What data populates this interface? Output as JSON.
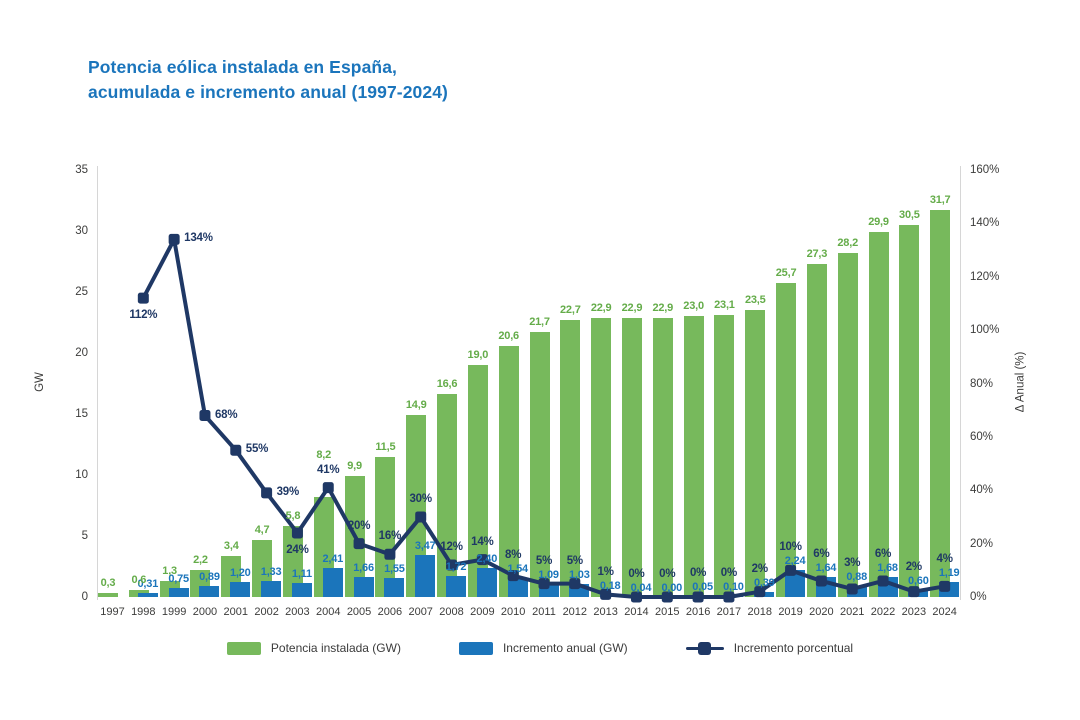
{
  "chart_data": {
    "type": "combo-bar-line",
    "title_lines": [
      "Potencia eólica instalada en España,",
      "acumulada e incremento anual (1997-2024)"
    ],
    "years": [
      1997,
      1998,
      1999,
      2000,
      2001,
      2002,
      2003,
      2004,
      2005,
      2006,
      2007,
      2008,
      2009,
      2010,
      2011,
      2012,
      2013,
      2014,
      2015,
      2016,
      2017,
      2018,
      2019,
      2020,
      2021,
      2022,
      2023,
      2024
    ],
    "series": [
      {
        "name": "Potencia instalada (GW)",
        "type": "bar",
        "color": "#77b95c",
        "values": [
          0.3,
          0.6,
          1.3,
          2.2,
          3.4,
          4.7,
          5.8,
          8.2,
          9.9,
          11.5,
          14.9,
          16.6,
          19.0,
          20.6,
          21.7,
          22.7,
          22.9,
          22.9,
          22.9,
          23.0,
          23.1,
          23.5,
          25.7,
          27.3,
          28.2,
          29.9,
          30.5,
          31.7
        ],
        "labels": [
          "0,3",
          "0,6",
          "1,3",
          "2,2",
          "3,4",
          "4,7",
          "5,8",
          "8,2",
          "9,9",
          "11,5",
          "14,9",
          "16,6",
          "19,0",
          "20,6",
          "21,7",
          "22,7",
          "22,9",
          "22,9",
          "22,9",
          "23,0",
          "23,1",
          "23,5",
          "25,7",
          "27,3",
          "28,2",
          "29,9",
          "30,5",
          "31,7"
        ]
      },
      {
        "name": "Incremento anual (GW)",
        "type": "bar",
        "color": "#1b75bb",
        "values": [
          null,
          0.31,
          0.75,
          0.89,
          1.2,
          1.33,
          1.11,
          2.41,
          1.66,
          1.55,
          3.47,
          1.72,
          2.4,
          1.54,
          1.09,
          1.03,
          0.18,
          0.04,
          0.0,
          0.05,
          0.1,
          0.39,
          2.24,
          1.64,
          0.88,
          1.68,
          0.6,
          1.19
        ],
        "labels": [
          null,
          "0,31",
          "0,75",
          "0,89",
          "1,20",
          "1,33",
          "1,11",
          "2,41",
          "1,66",
          "1,55",
          "3,47",
          "1,72",
          "2,40",
          "1,54",
          "1,09",
          "1,03",
          "0,18",
          "0,04",
          "0,00",
          "0,05",
          "0,10",
          "0,39",
          "2,24",
          "1,64",
          "0,88",
          "1,68",
          "0,60",
          "1,19"
        ]
      },
      {
        "name": "Incremento porcentual",
        "type": "line",
        "color": "#1f3865",
        "values": [
          null,
          112,
          134,
          68,
          55,
          39,
          24,
          41,
          20,
          16,
          30,
          12,
          14,
          8,
          5,
          5,
          1,
          0,
          0,
          0,
          0,
          2,
          10,
          6,
          3,
          6,
          2,
          4
        ],
        "labels": [
          null,
          "112%",
          "134%",
          "68%",
          "55%",
          "39%",
          "24%",
          "41%",
          "20%",
          "16%",
          "30%",
          "12%",
          "14%",
          "8%",
          "5%",
          "5%",
          "1%",
          "0%",
          "0%",
          "0%",
          "0%",
          "2%",
          "10%",
          "6%",
          "3%",
          "6%",
          "2%",
          "4%"
        ]
      }
    ],
    "left_axis": {
      "label": "GW",
      "ticks": [
        0,
        5,
        10,
        15,
        20,
        25,
        30,
        35
      ],
      "max": 35
    },
    "right_axis": {
      "label": "Δ Anual (%)",
      "ticks": [
        "0%",
        "20%",
        "40%",
        "60%",
        "80%",
        "100%",
        "120%",
        "140%",
        "160%"
      ],
      "max": 160
    },
    "pct_label_pos": [
      "",
      "below",
      "right",
      "right",
      "right",
      "right",
      "below",
      "auto",
      "auto",
      "auto",
      "auto",
      "auto",
      "auto",
      "auto",
      "auto",
      "auto",
      "auto",
      "auto",
      "auto",
      "auto",
      "auto",
      "auto",
      "auto",
      "auto",
      "auto",
      "auto",
      "auto",
      "auto"
    ],
    "grid": "off",
    "legend_position": "bottom"
  }
}
